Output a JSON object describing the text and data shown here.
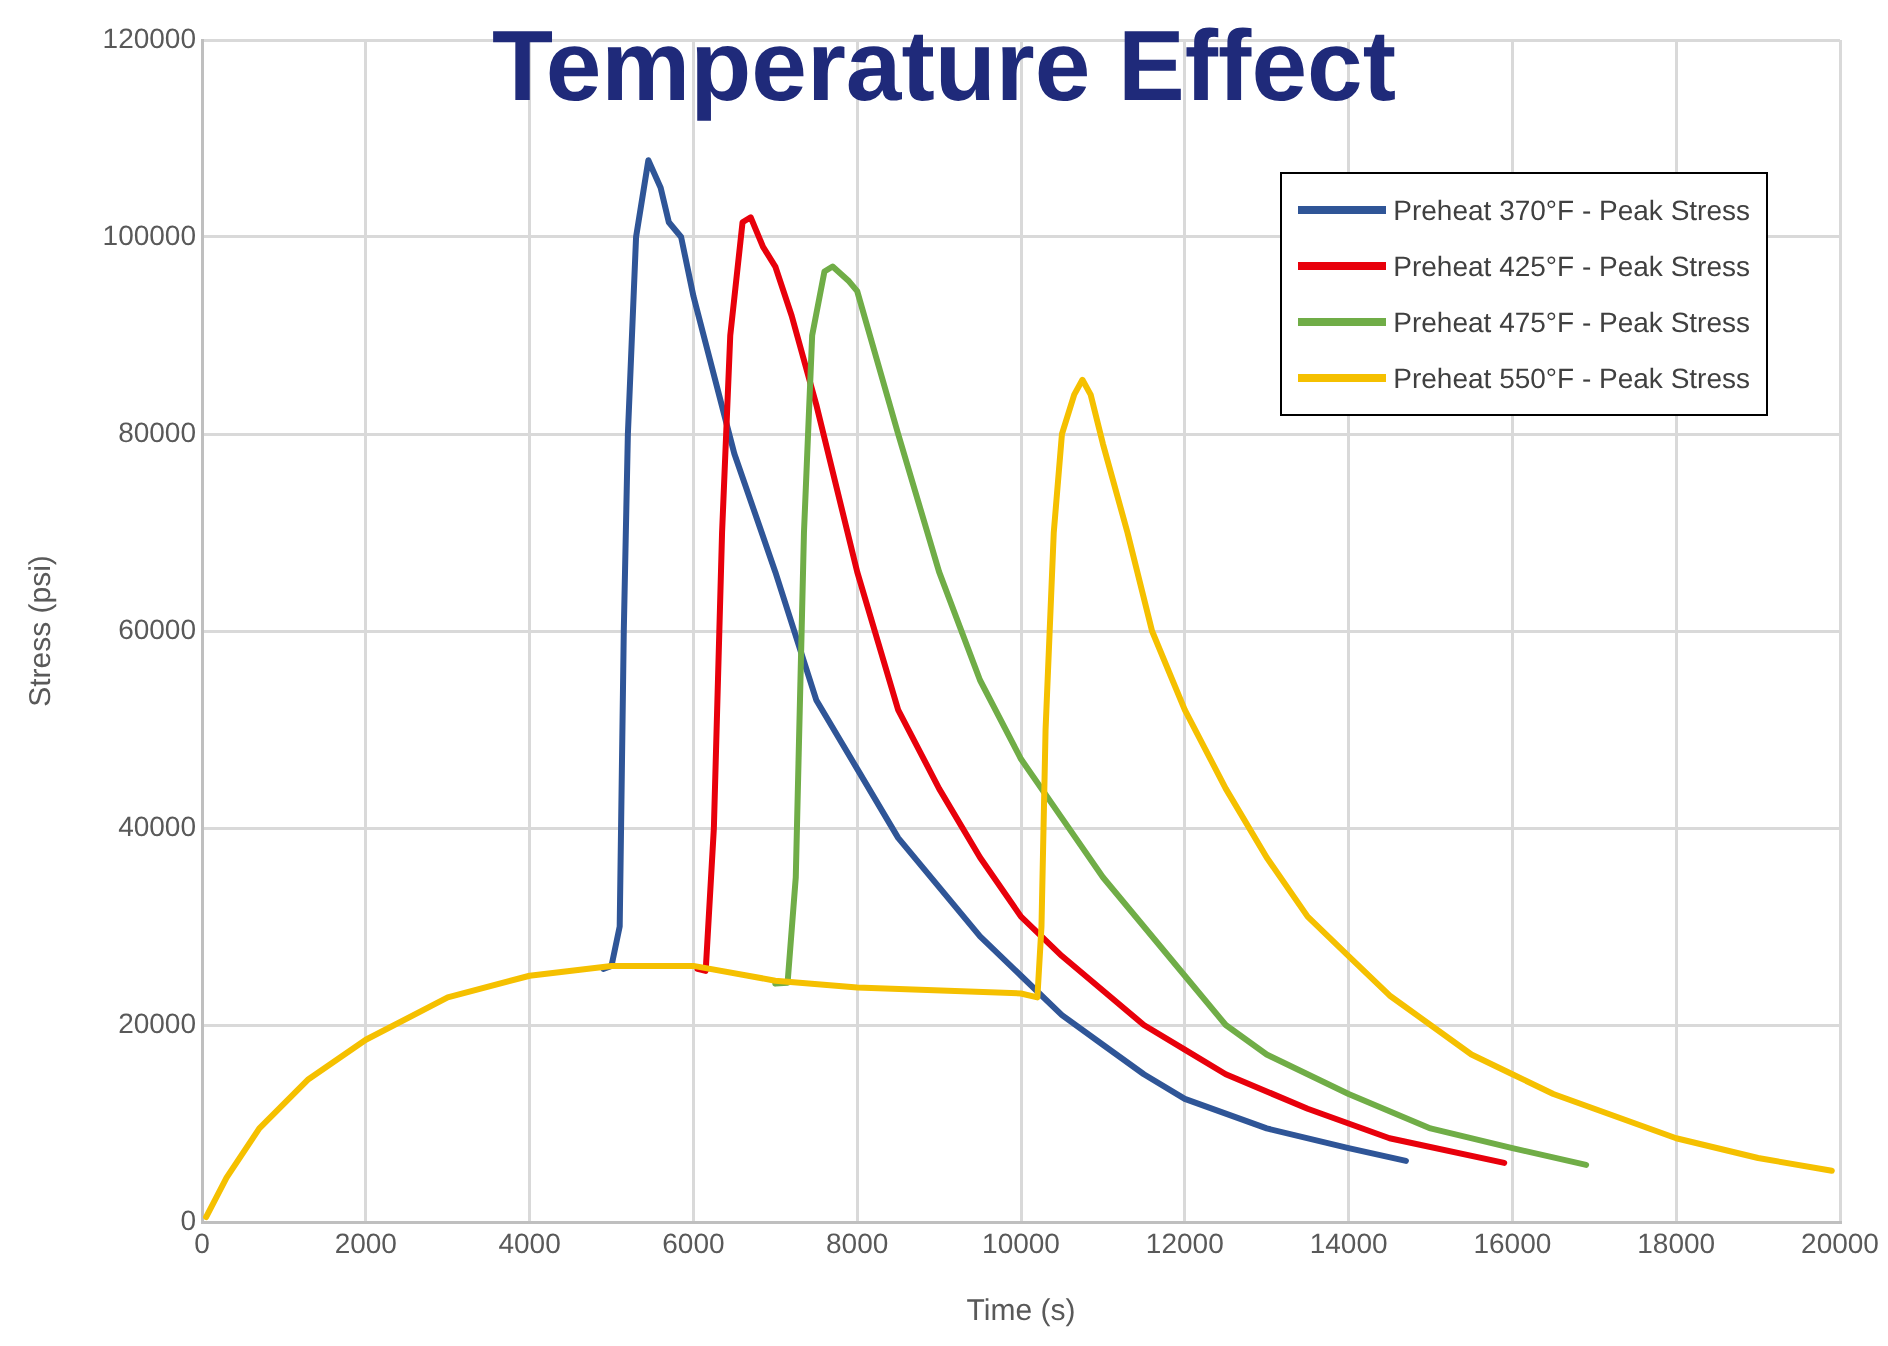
{
  "chart_data": {
    "type": "line",
    "title": "Temperature Effect",
    "xlabel": "Time (s)",
    "ylabel": "Stress (psi)",
    "xlim": [
      0,
      20000
    ],
    "xticks": [
      0,
      2000,
      4000,
      6000,
      8000,
      10000,
      12000,
      14000,
      16000,
      18000,
      20000
    ],
    "ylim": [
      0,
      120000
    ],
    "yticks": [
      0,
      20000,
      40000,
      60000,
      80000,
      100000,
      120000
    ],
    "grid": true,
    "legend": "top right",
    "marker": "none",
    "line_style": "solid",
    "series": [
      {
        "name": "Preheat 370°F - Peak Stress",
        "color": "#2f5597",
        "x": [
          4900,
          5000,
          5100,
          5150,
          5200,
          5300,
          5450,
          5600,
          5700,
          5850,
          6000,
          6500,
          7000,
          7500,
          8000,
          8500,
          9000,
          9500,
          10000,
          10500,
          11000,
          11500,
          12000,
          13000,
          14000,
          14700
        ],
        "values": [
          25700,
          26000,
          30000,
          60000,
          80000,
          100000,
          107800,
          105000,
          101500,
          100000,
          94000,
          78000,
          66000,
          53000,
          46000,
          39000,
          34000,
          29000,
          25000,
          21000,
          18000,
          15000,
          12500,
          9500,
          7500,
          6200
        ]
      },
      {
        "name": "Preheat 425°F - Peak Stress",
        "color": "#e8000b",
        "x": [
          6050,
          6150,
          6250,
          6350,
          6450,
          6600,
          6700,
          6850,
          7000,
          7200,
          7500,
          8000,
          8500,
          9000,
          9500,
          10000,
          10500,
          11000,
          11500,
          12000,
          12500,
          13500,
          14500,
          15900
        ],
        "values": [
          25700,
          25500,
          40000,
          70000,
          90000,
          101500,
          102000,
          99000,
          97000,
          92000,
          83000,
          66000,
          52000,
          44000,
          37000,
          31000,
          27000,
          23500,
          20000,
          17500,
          15000,
          11500,
          8500,
          6000
        ]
      },
      {
        "name": "Preheat 475°F - Peak Stress",
        "color": "#70ad47",
        "x": [
          7000,
          7150,
          7250,
          7350,
          7450,
          7600,
          7700,
          7900,
          8000,
          8500,
          9000,
          9500,
          10000,
          10500,
          11000,
          11500,
          12000,
          12500,
          13000,
          14000,
          15000,
          16000,
          16900
        ],
        "values": [
          24200,
          24300,
          35000,
          70000,
          90000,
          96500,
          97000,
          95500,
          94500,
          80000,
          66000,
          55000,
          47000,
          41000,
          35000,
          30000,
          25000,
          20000,
          17000,
          13000,
          9500,
          7500,
          5800
        ]
      },
      {
        "name": "Preheat 550°F - Peak Stress",
        "color": "#f5c000",
        "x": [
          50,
          300,
          700,
          1300,
          2000,
          3000,
          4000,
          5000,
          6000,
          7000,
          8000,
          10000,
          10200,
          10250,
          10300,
          10400,
          10500,
          10650,
          10750,
          10850,
          11000,
          11300,
          11600,
          12000,
          12500,
          13000,
          13500,
          14000,
          14500,
          15500,
          16000,
          16500,
          17000,
          18000,
          19000,
          19900
        ],
        "values": [
          500,
          4500,
          9500,
          14500,
          18500,
          22800,
          25000,
          26000,
          26000,
          24500,
          23800,
          23200,
          22800,
          30000,
          50000,
          70000,
          80000,
          84000,
          85500,
          84000,
          79000,
          70000,
          60000,
          52000,
          44000,
          37000,
          31000,
          27000,
          23000,
          17000,
          15000,
          13000,
          11500,
          8500,
          6500,
          5200
        ]
      }
    ]
  }
}
